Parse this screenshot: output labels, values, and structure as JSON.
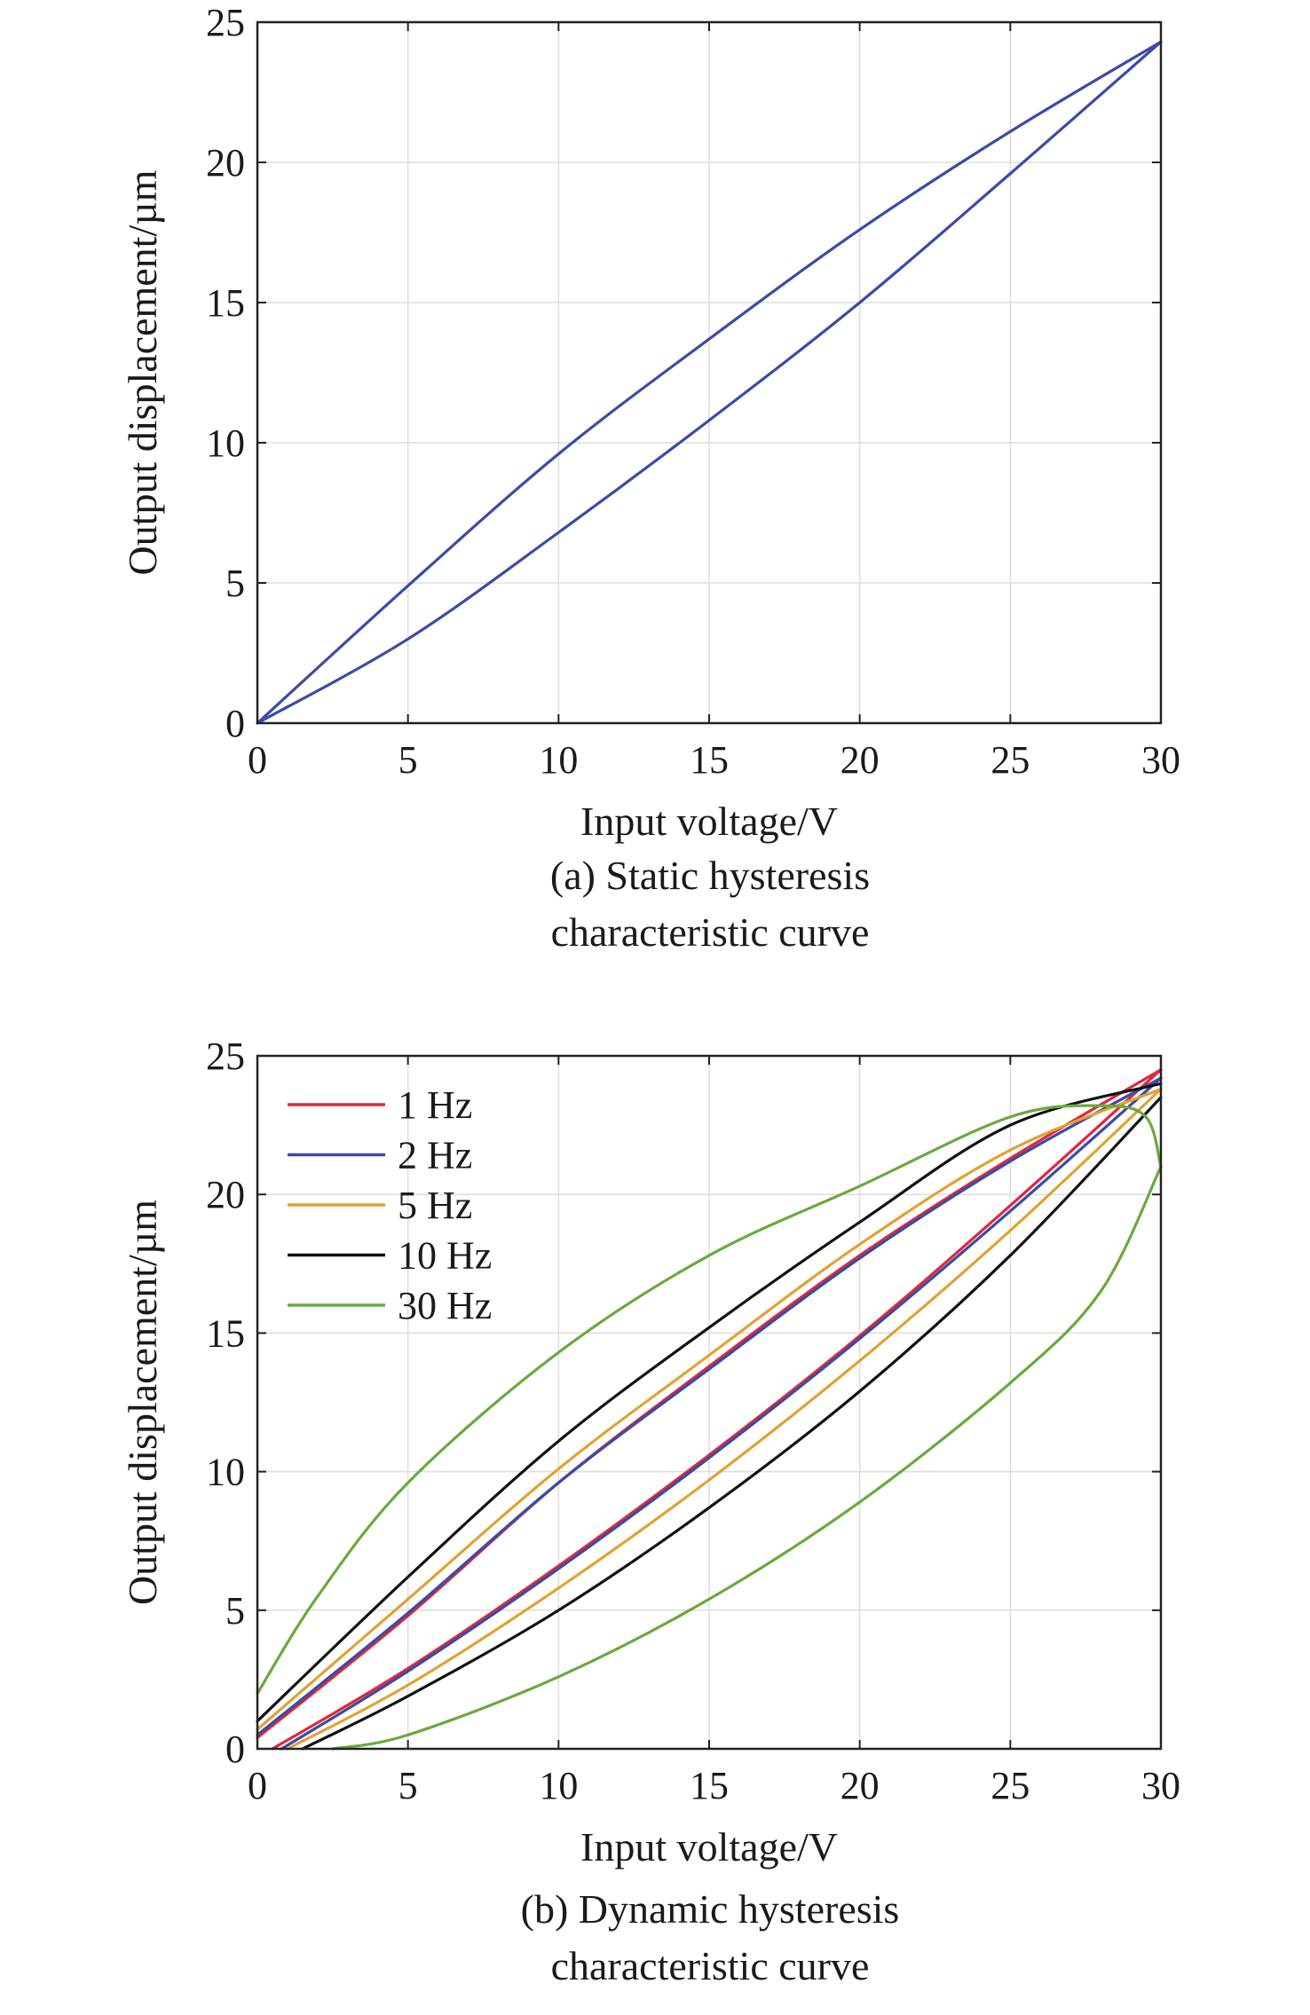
{
  "chart_data": [
    {
      "type": "line",
      "panel": "a",
      "xlabel": "Input voltage/V",
      "ylabel": "Output displacement/µm",
      "xlim": [
        0,
        30
      ],
      "ylim": [
        0,
        25
      ],
      "xticks": [
        "0",
        "5",
        "10",
        "15",
        "20",
        "25",
        "30"
      ],
      "yticks": [
        "0",
        "5",
        "10",
        "15",
        "20",
        "25"
      ],
      "grid": true,
      "caption_line1": "(a) Static hysteresis",
      "caption_line2": "characteristic curve",
      "series": [
        {
          "name": "static",
          "color": "#3a4ba8",
          "ascending": [
            [
              0,
              0
            ],
            [
              5,
              3.0
            ],
            [
              10,
              6.8
            ],
            [
              15,
              10.8
            ],
            [
              20,
              15.0
            ],
            [
              25,
              19.6
            ],
            [
              30,
              24.3
            ]
          ],
          "descending": [
            [
              30,
              24.3
            ],
            [
              25,
              21.1
            ],
            [
              20,
              17.6
            ],
            [
              15,
              13.7
            ],
            [
              10,
              9.6
            ],
            [
              5,
              4.9
            ],
            [
              0,
              0
            ]
          ]
        }
      ]
    },
    {
      "type": "line",
      "panel": "b",
      "xlabel": "Input voltage/V",
      "ylabel": "Output displacement/µm",
      "xlim": [
        0,
        30
      ],
      "ylim": [
        0,
        25
      ],
      "xticks": [
        "0",
        "5",
        "10",
        "15",
        "20",
        "25",
        "30"
      ],
      "yticks": [
        "0",
        "5",
        "10",
        "15",
        "20",
        "25"
      ],
      "grid": true,
      "legend": "top-left",
      "caption_line1": "(b) Dynamic hysteresis",
      "caption_line2": "characteristic curve",
      "series": [
        {
          "name": "1 Hz",
          "color": "#e0283a",
          "ascending": [
            [
              0.5,
              0
            ],
            [
              5,
              2.9
            ],
            [
              10,
              6.6
            ],
            [
              15,
              10.6
            ],
            [
              20,
              14.9
            ],
            [
              25,
              19.6
            ],
            [
              30,
              24.5
            ]
          ],
          "descending": [
            [
              30,
              24.5
            ],
            [
              25,
              21.3
            ],
            [
              20,
              17.8
            ],
            [
              15,
              13.8
            ],
            [
              10,
              9.6
            ],
            [
              5,
              4.8
            ],
            [
              0,
              0.4
            ]
          ]
        },
        {
          "name": "2 Hz",
          "color": "#3a4ba8",
          "ascending": [
            [
              0.8,
              0
            ],
            [
              5,
              2.8
            ],
            [
              10,
              6.5
            ],
            [
              15,
              10.5
            ],
            [
              20,
              14.8
            ],
            [
              25,
              19.4
            ],
            [
              30,
              24.2
            ]
          ],
          "descending": [
            [
              30,
              24.2
            ],
            [
              25,
              21.2
            ],
            [
              20,
              17.7
            ],
            [
              15,
              13.7
            ],
            [
              10,
              9.6
            ],
            [
              5,
              4.9
            ],
            [
              0,
              0.5
            ]
          ]
        },
        {
          "name": "5 Hz",
          "color": "#e1a234",
          "ascending": [
            [
              1,
              0
            ],
            [
              5,
              2.3
            ],
            [
              10,
              5.8
            ],
            [
              15,
              9.7
            ],
            [
              20,
              14.0
            ],
            [
              25,
              18.7
            ],
            [
              30,
              23.8
            ]
          ],
          "descending": [
            [
              30,
              23.8
            ],
            [
              25,
              21.6
            ],
            [
              20,
              18.2
            ],
            [
              15,
              14.2
            ],
            [
              10,
              10.1
            ],
            [
              5,
              5.4
            ],
            [
              0,
              0.7
            ]
          ]
        },
        {
          "name": "10 Hz",
          "color": "#111111",
          "ascending": [
            [
              1.5,
              0
            ],
            [
              5,
              1.9
            ],
            [
              10,
              5.0
            ],
            [
              15,
              8.7
            ],
            [
              20,
              12.9
            ],
            [
              25,
              17.8
            ],
            [
              30,
              23.5
            ]
          ],
          "descending": [
            [
              30,
              24.0
            ],
            [
              25,
              22.5
            ],
            [
              20,
              19.0
            ],
            [
              15,
              15.2
            ],
            [
              10,
              11.1
            ],
            [
              5,
              6.2
            ],
            [
              0,
              1.0
            ]
          ]
        },
        {
          "name": "30 Hz",
          "color": "#6aaa3c",
          "ascending": [
            [
              2.5,
              0
            ],
            [
              5,
              0.5
            ],
            [
              10,
              2.6
            ],
            [
              15,
              5.4
            ],
            [
              20,
              8.9
            ],
            [
              25,
              13.2
            ],
            [
              28,
              16.5
            ],
            [
              30,
              21.0
            ]
          ],
          "descending": [
            [
              30,
              21.0
            ],
            [
              29.5,
              22.8
            ],
            [
              28,
              23.2
            ],
            [
              25,
              22.8
            ],
            [
              20,
              20.3
            ],
            [
              15,
              17.8
            ],
            [
              10,
              14.3
            ],
            [
              5,
              9.6
            ],
            [
              2,
              5.5
            ],
            [
              0,
              2.0
            ]
          ]
        }
      ]
    }
  ]
}
